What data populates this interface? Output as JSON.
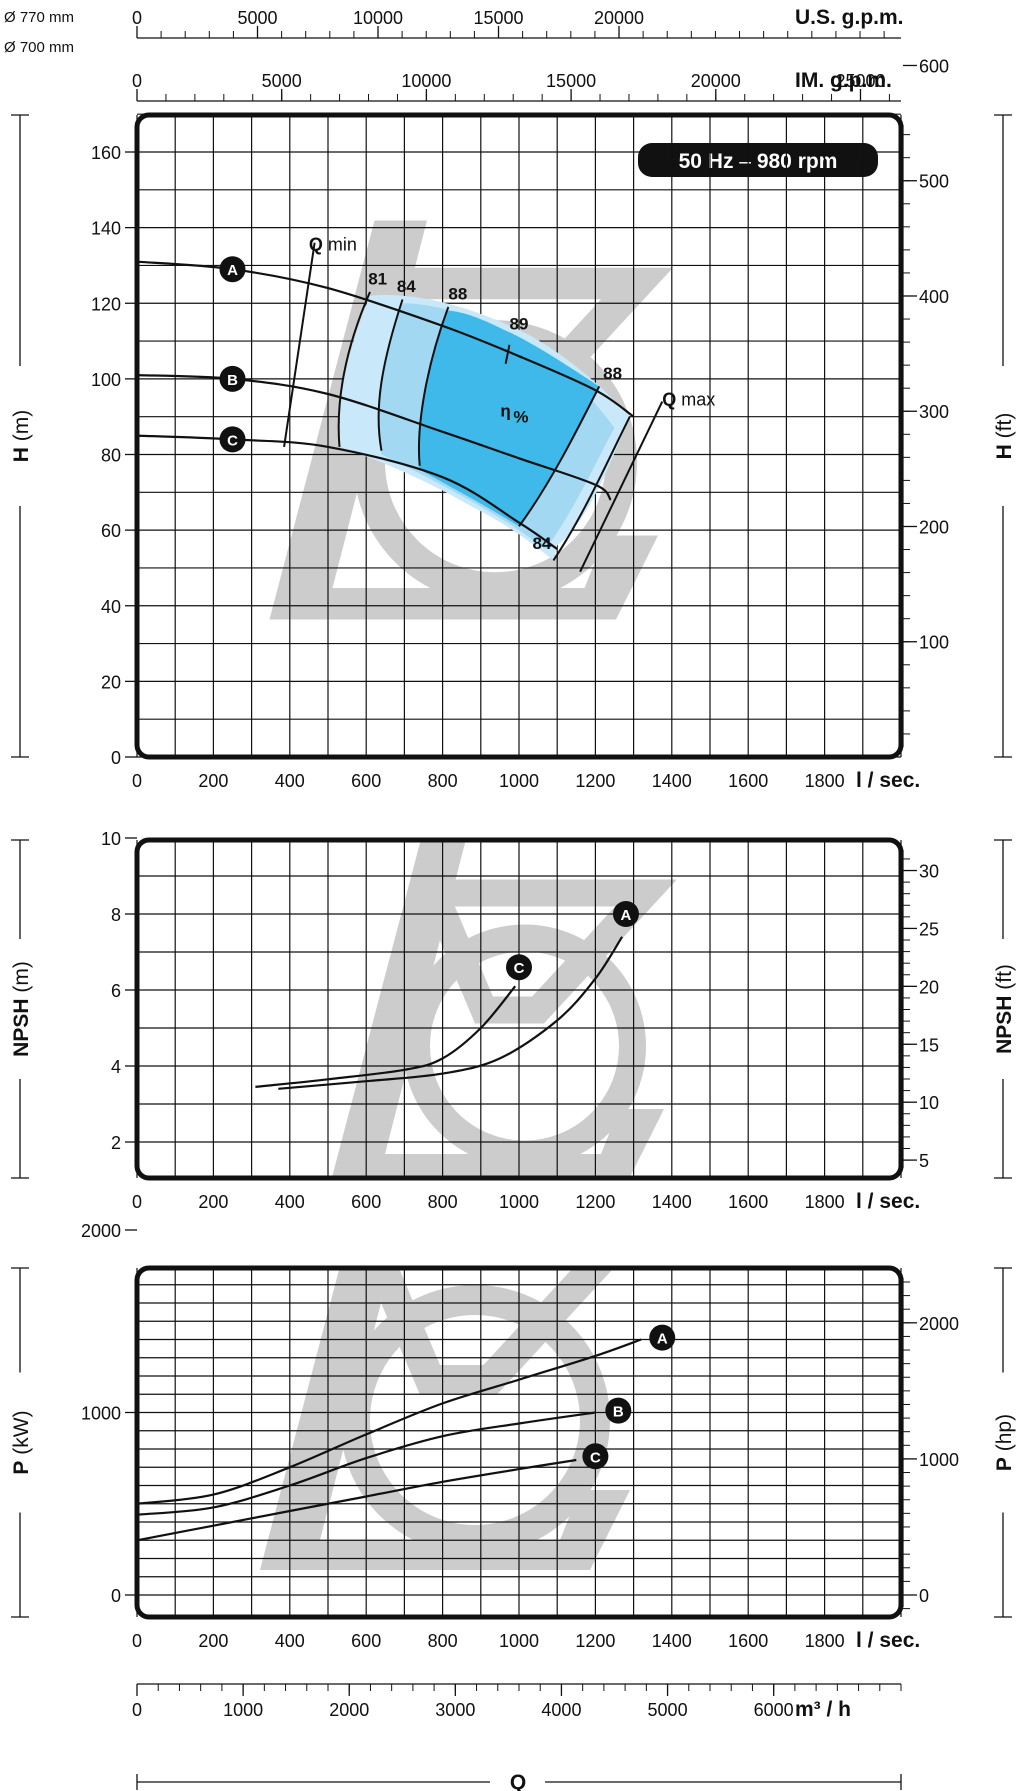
{
  "impeller_diameters": [
    "Ø 770 mm",
    "Ø 700 mm"
  ],
  "speed_badge": {
    "hz": "50 Hz",
    "dash": " – ",
    "rpm": "980 rpm"
  },
  "colors": {
    "eff_light": "#c9e8f9",
    "eff_mid": "#a3d8f3",
    "eff_dark": "#3fb9ea",
    "watermark": "#cccccc",
    "curve": "#111111",
    "badge": "#111111"
  },
  "chart_data": [
    {
      "type": "line",
      "name": "head",
      "ylabel": "H",
      "ylabel_unit": "(m)",
      "y2label": "H",
      "y2label_unit": "(ft)",
      "xlabel_unit": "l / sec.",
      "xlim": [
        0,
        2000
      ],
      "ylim": [
        0,
        170
      ],
      "xticks": [
        0,
        200,
        400,
        600,
        800,
        1000,
        1200,
        1400,
        1600,
        1800
      ],
      "yticks": [
        0,
        20,
        40,
        60,
        80,
        100,
        120,
        140,
        160
      ],
      "y2ticks": [
        100,
        200,
        300,
        400,
        500,
        600
      ],
      "series": [
        {
          "name": "A",
          "x": [
            0,
            250,
            500,
            800,
            1000,
            1200,
            1300
          ],
          "y": [
            131,
            129,
            124,
            114,
            106,
            97,
            90
          ]
        },
        {
          "name": "B",
          "x": [
            0,
            250,
            500,
            800,
            1000,
            1200,
            1240
          ],
          "y": [
            101,
            100,
            96,
            86,
            79,
            72,
            68
          ]
        },
        {
          "name": "C",
          "x": [
            0,
            250,
            500,
            800,
            1000,
            1100
          ],
          "y": [
            85,
            84,
            82,
            74,
            62,
            55
          ]
        }
      ],
      "efficiency_labels": [
        "81",
        "84",
        "88",
        "89",
        "88",
        "84"
      ],
      "efficiency_center_label": "η",
      "efficiency_center_sub": "%",
      "q_min_label": "min",
      "q_max_label": "max",
      "q_symbol": "Q",
      "top_axes": [
        {
          "unit": "U.S. g.p.m.",
          "ticks": [
            0,
            5000,
            10000,
            15000,
            20000
          ],
          "labels": [
            "0",
            "5000",
            "10000",
            "15000",
            "20000"
          ]
        },
        {
          "unit": "IM. g.p.m.",
          "ticks": [
            0,
            5000,
            10000,
            15000,
            20000,
            25000
          ],
          "labels": [
            "0",
            "5000",
            "10000",
            "15000",
            "20000",
            "25000"
          ]
        }
      ]
    },
    {
      "type": "line",
      "name": "npsh",
      "ylabel": "NPSH",
      "ylabel_unit": "(m)",
      "y2label": "NPSH",
      "y2label_unit": "(ft)",
      "xlabel_unit": "l / sec.",
      "xlim": [
        0,
        2000
      ],
      "ylim": [
        1,
        10
      ],
      "xticks": [
        0,
        200,
        400,
        600,
        800,
        1000,
        1200,
        1400,
        1600,
        1800
      ],
      "yticks": [
        2,
        4,
        6,
        8,
        10
      ],
      "y2ticks": [
        5,
        10,
        15,
        20,
        25,
        30
      ],
      "series": [
        {
          "name": "A",
          "x": [
            370,
            600,
            800,
            950,
            1100,
            1200,
            1270
          ],
          "y": [
            3.4,
            3.6,
            3.8,
            4.2,
            5.2,
            6.3,
            7.4
          ]
        },
        {
          "name": "C",
          "x": [
            310,
            500,
            700,
            800,
            900,
            990
          ],
          "y": [
            3.45,
            3.65,
            3.9,
            4.2,
            5.0,
            6.1
          ]
        }
      ]
    },
    {
      "type": "line",
      "name": "power",
      "ylabel": "P",
      "ylabel_unit": "(kW)",
      "y2label": "P",
      "y2label_unit": "(hp)",
      "xlabel_unit": "l / sec.",
      "xlim": [
        0,
        2000
      ],
      "ylim": [
        0,
        2000
      ],
      "xticks": [
        0,
        200,
        400,
        600,
        800,
        1000,
        1200,
        1400,
        1600,
        1800
      ],
      "yticks": [
        0,
        1000,
        2000
      ],
      "y2ticks": [
        0,
        1000,
        2000
      ],
      "series": [
        {
          "name": "A",
          "x": [
            0,
            200,
            400,
            600,
            800,
            1000,
            1200,
            1320
          ],
          "y": [
            500,
            550,
            700,
            880,
            1050,
            1180,
            1310,
            1400
          ]
        },
        {
          "name": "B",
          "x": [
            0,
            200,
            400,
            600,
            800,
            1000,
            1200
          ],
          "y": [
            440,
            480,
            600,
            750,
            870,
            940,
            1000
          ]
        },
        {
          "name": "C",
          "x": [
            0,
            200,
            400,
            600,
            800,
            1000,
            1150
          ],
          "y": [
            300,
            380,
            460,
            540,
            620,
            690,
            740
          ]
        }
      ],
      "bottom_axis": {
        "unit": "m³ / h",
        "ticks": [
          0,
          1000,
          2000,
          3000,
          4000,
          5000,
          6000
        ],
        "labels": [
          "0",
          "1000",
          "2000",
          "3000",
          "4000",
          "5000",
          "6000"
        ]
      },
      "bottom_title": "Q"
    }
  ]
}
